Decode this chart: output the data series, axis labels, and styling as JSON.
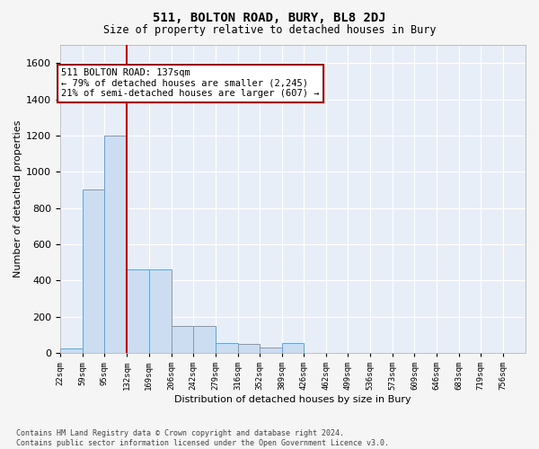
{
  "title": "511, BOLTON ROAD, BURY, BL8 2DJ",
  "subtitle": "Size of property relative to detached houses in Bury",
  "xlabel": "Distribution of detached houses by size in Bury",
  "ylabel": "Number of detached properties",
  "footnote": "Contains HM Land Registry data © Crown copyright and database right 2024.\nContains public sector information licensed under the Open Government Licence v3.0.",
  "bar_color": "#ccddf2",
  "bar_edge_color": "#6ea0cc",
  "background_color": "#e8eef8",
  "annotation_text": "511 BOLTON ROAD: 137sqm\n← 79% of detached houses are smaller (2,245)\n21% of semi-detached houses are larger (607) →",
  "vline_color": "#cc0000",
  "bin_starts": [
    22,
    59,
    95,
    132,
    169,
    206,
    242,
    279,
    316,
    352,
    389,
    426,
    462,
    499,
    536,
    573,
    609,
    646,
    683,
    719
  ],
  "bin_width": 37,
  "bin_labels": [
    "22sqm",
    "59sqm",
    "95sqm",
    "132sqm",
    "169sqm",
    "206sqm",
    "242sqm",
    "279sqm",
    "316sqm",
    "352sqm",
    "389sqm",
    "426sqm",
    "462sqm",
    "499sqm",
    "536sqm",
    "573sqm",
    "609sqm",
    "646sqm",
    "683sqm",
    "719sqm",
    "756sqm"
  ],
  "values": [
    25,
    900,
    1200,
    460,
    460,
    150,
    150,
    55,
    50,
    30,
    55,
    0,
    0,
    0,
    0,
    0,
    0,
    0,
    0,
    0
  ],
  "ylim": [
    0,
    1700
  ],
  "yticks": [
    0,
    200,
    400,
    600,
    800,
    1000,
    1200,
    1400,
    1600
  ]
}
